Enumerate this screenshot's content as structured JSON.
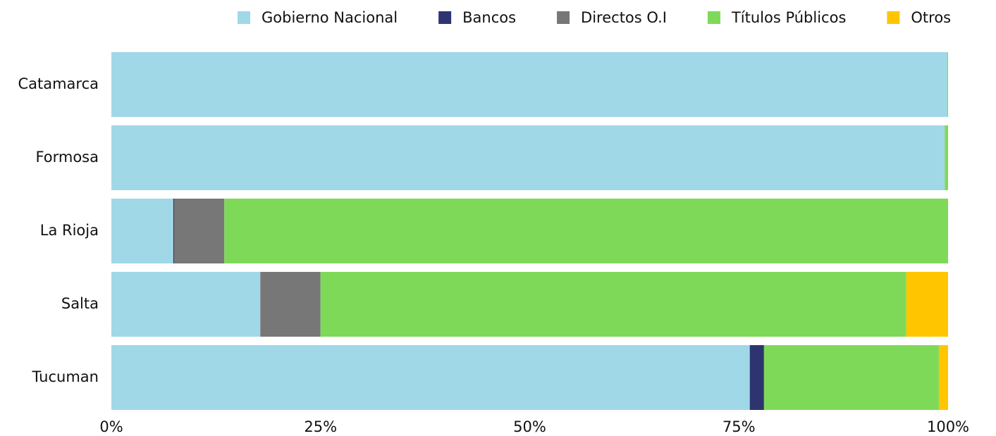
{
  "chart_data": {
    "type": "stacked_barh",
    "categories": [
      "Catamarca",
      "Formosa",
      "La Rioja",
      "Salta",
      "Tucuman"
    ],
    "series": [
      {
        "name": "Gobierno Nacional",
        "color": "#a0d8e8",
        "values": [
          99.9,
          99.6,
          7.4,
          17.8,
          76.3
        ]
      },
      {
        "name": "Bancos",
        "color": "#2e3470",
        "values": [
          0,
          0,
          0.1,
          0,
          1.7
        ]
      },
      {
        "name": "Directos O.I",
        "color": "#777777",
        "values": [
          0,
          0,
          6.0,
          7.2,
          0
        ]
      },
      {
        "name": "Títulos Públicos",
        "color": "#7fd959",
        "values": [
          0.1,
          0.4,
          86.5,
          70.0,
          20.9
        ]
      },
      {
        "name": "Otros",
        "color": "#ffc600",
        "values": [
          0,
          0,
          0,
          5.0,
          1.1
        ]
      }
    ],
    "xlim": [
      0,
      100
    ],
    "xticks": [
      {
        "value": 0,
        "label": "0%"
      },
      {
        "value": 25,
        "label": "25%"
      },
      {
        "value": 50,
        "label": "50%"
      },
      {
        "value": 75,
        "label": "75%"
      },
      {
        "value": 100,
        "label": "100%"
      }
    ],
    "legend": "top-right"
  }
}
